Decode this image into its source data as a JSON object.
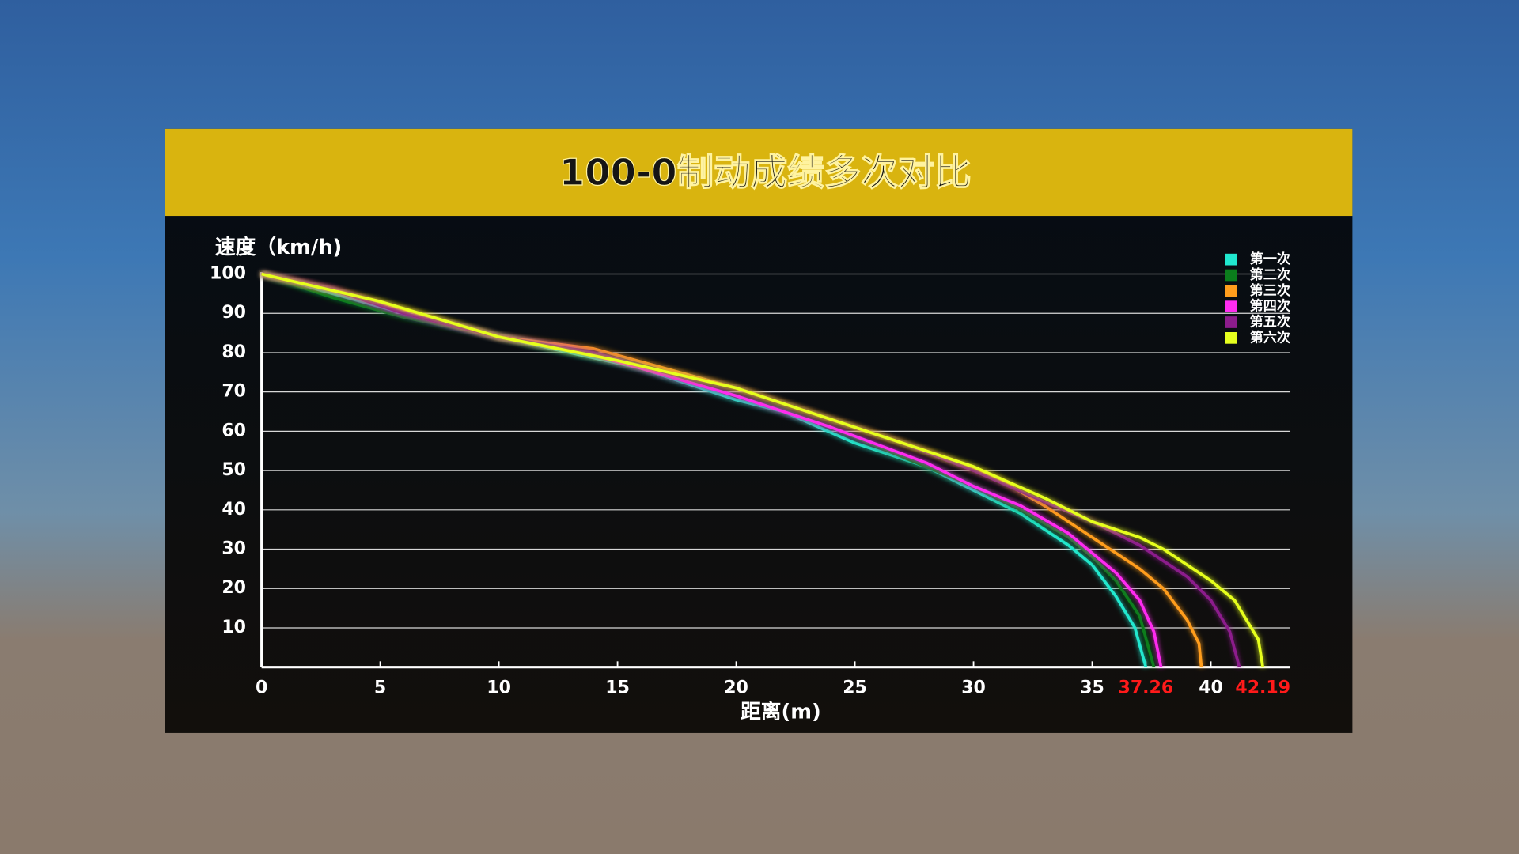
{
  "chart_data": {
    "type": "line",
    "title": "100-0制动成绩多次对比",
    "y_label": "速度（km/h)",
    "x_label": "距离(m)",
    "xlim": [
      0,
      43.35
    ],
    "ylim": [
      0,
      100
    ],
    "xticks": [
      0,
      5,
      10,
      15,
      20,
      25,
      30,
      35,
      37.26,
      40,
      42.19
    ],
    "yticks": [
      10,
      20,
      30,
      40,
      50,
      60,
      70,
      80,
      90,
      100
    ],
    "highlight_xticks": [
      37.26,
      42.19
    ],
    "highlight_color": "#ff1a1a",
    "grid": true,
    "legend": "upper right",
    "series": [
      {
        "name": "第一次",
        "color": "#20e8cf",
        "x": [
          0,
          3,
          6,
          10,
          13,
          16,
          20,
          22,
          25,
          28,
          30,
          32,
          34,
          35,
          36,
          36.8,
          37.26
        ],
        "values": [
          100,
          95,
          90,
          84,
          80,
          76,
          68,
          65,
          57,
          51,
          45,
          39,
          31,
          26,
          18,
          10,
          0
        ]
      },
      {
        "name": "第二次",
        "color": "#0b7d1c",
        "x": [
          0,
          3,
          6,
          10,
          13,
          16,
          20,
          24,
          28,
          30,
          32,
          34,
          35,
          36,
          37,
          37.6
        ],
        "values": [
          100,
          94,
          89,
          84,
          81,
          76,
          69,
          61,
          51,
          46,
          40,
          33,
          28,
          22,
          13,
          0
        ]
      },
      {
        "name": "第三次",
        "color": "#ff9d1c",
        "x": [
          0,
          3,
          6,
          10,
          14,
          17,
          20,
          24,
          28,
          31,
          33,
          35,
          37,
          38,
          39,
          39.5,
          39.6
        ],
        "values": [
          100,
          96,
          91,
          84,
          81,
          76,
          71,
          63,
          55,
          48,
          41,
          33,
          25,
          20,
          12,
          6,
          0
        ]
      },
      {
        "name": "第四次",
        "color": "#ff2cf0",
        "x": [
          0,
          3,
          6,
          10,
          13,
          16,
          20,
          24,
          28,
          30,
          32,
          34,
          35,
          36,
          37,
          37.6,
          37.9
        ],
        "values": [
          100,
          96,
          90,
          84,
          81,
          76,
          69,
          61,
          52,
          46,
          41,
          34,
          29,
          24,
          17,
          9,
          0
        ]
      },
      {
        "name": "第五次",
        "color": "#8c1c8c",
        "x": [
          0,
          3,
          6,
          10,
          14,
          17,
          20,
          24,
          27,
          30,
          33,
          35,
          37,
          39,
          40,
          40.8,
          41.2
        ],
        "values": [
          100,
          96,
          90,
          84,
          80,
          75,
          71,
          63,
          57,
          50,
          42,
          37,
          31,
          23,
          17,
          9,
          0
        ]
      },
      {
        "name": "第六次",
        "color": "#e6ff1f",
        "x": [
          0,
          5,
          10,
          15,
          20,
          25,
          30,
          33,
          35,
          37,
          38,
          40,
          41,
          42,
          42.19
        ],
        "values": [
          100,
          93,
          84,
          78,
          71,
          61,
          51,
          43,
          37,
          33,
          30,
          22,
          17,
          7,
          0
        ]
      }
    ]
  }
}
